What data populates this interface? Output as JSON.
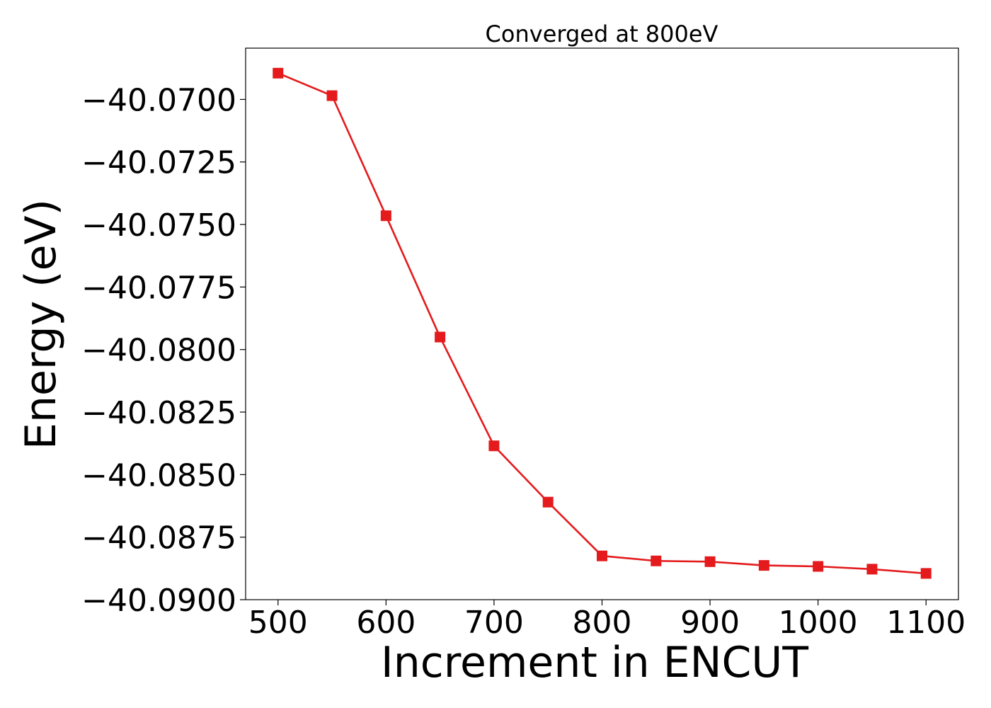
{
  "chart_data": {
    "type": "line",
    "title": "Converged at 800eV",
    "xlabel": "Increment in ENCUT",
    "ylabel": "Energy (eV)",
    "x": [
      500,
      550,
      600,
      650,
      700,
      750,
      800,
      850,
      900,
      950,
      1000,
      1050,
      1100
    ],
    "series": [
      {
        "values": [
          -40.06895,
          -40.06985,
          -40.07465,
          -40.0795,
          -40.08385,
          -40.0861,
          -40.08825,
          -40.08845,
          -40.08848,
          -40.08863,
          -40.08867,
          -40.08878,
          -40.08895
        ],
        "color": "#e41a1c",
        "marker": "square"
      }
    ],
    "xlim": [
      470,
      1130
    ],
    "ylim": [
      -40.09,
      -40.06795
    ],
    "xticks": [
      500,
      600,
      700,
      800,
      900,
      1000,
      1100
    ],
    "xtick_labels": [
      "500",
      "600",
      "700",
      "800",
      "900",
      "1000",
      "1100"
    ],
    "yticks": [
      -40.07,
      -40.0725,
      -40.075,
      -40.0775,
      -40.08,
      -40.0825,
      -40.085,
      -40.0875,
      -40.09
    ],
    "ytick_labels": [
      "−40.0700",
      "−40.0725",
      "−40.0750",
      "−40.0775",
      "−40.0800",
      "−40.0825",
      "−40.0850",
      "−40.0875",
      "−40.0900"
    ],
    "grid": false,
    "legend": "none"
  }
}
